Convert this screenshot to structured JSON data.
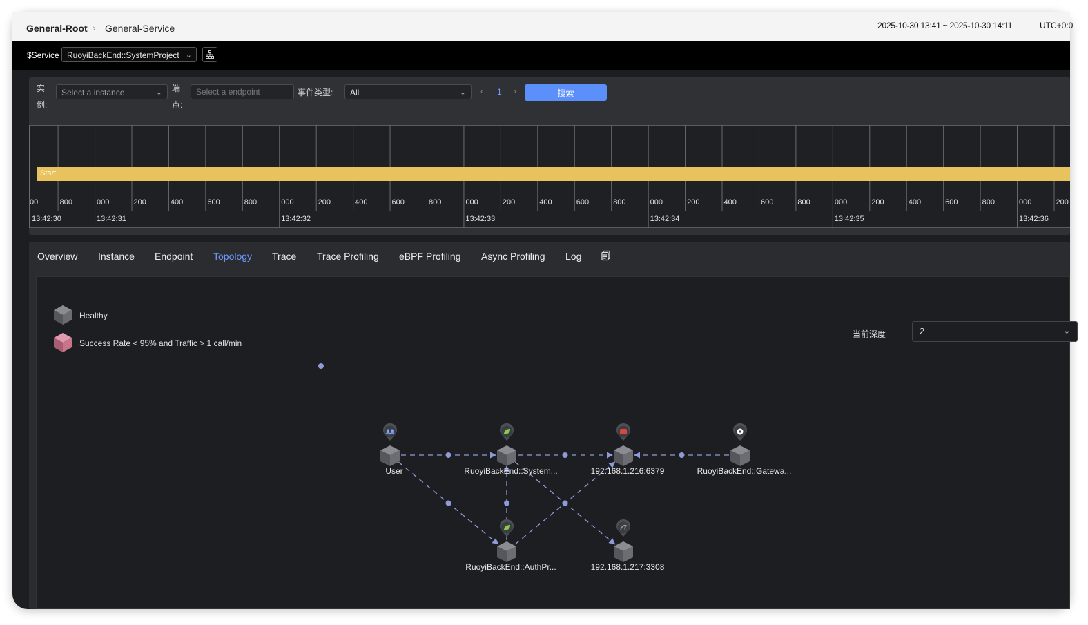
{
  "header": {
    "breadcrumb_root": "General-Root",
    "breadcrumb_sep": "›",
    "breadcrumb_service": "General-Service",
    "time_range": "2025-10-30 13:41 ~ 2025-10-30 14:11",
    "timezone": "UTC+0:0"
  },
  "service_bar": {
    "label": "$Service",
    "selected_service": "RuoyiBackEnd::SystemProject",
    "topology_icon": "hierarchy-icon"
  },
  "filters": {
    "instance_label_1": "实",
    "instance_label_2": "例:",
    "instance_placeholder": "Select a instance",
    "endpoint_label_1": "端",
    "endpoint_label_2": "点:",
    "endpoint_placeholder": "Select a endpoint",
    "event_type_label": "事件类型:",
    "event_type_value": "All",
    "page_prev": "‹",
    "page_number": "1",
    "page_next": "›",
    "search_label": "搜索"
  },
  "timeline": {
    "bar_label": "Start",
    "bar_color": "#e8c25d",
    "tick_labels": [
      "00",
      "800",
      "000",
      "200",
      "400",
      "600",
      "800",
      "000",
      "200",
      "400",
      "600",
      "800",
      "000",
      "200",
      "400",
      "600",
      "800",
      "000",
      "200",
      "400",
      "600",
      "800",
      "000",
      "200",
      "400",
      "600",
      "800",
      "000",
      "200"
    ],
    "timestamps": [
      "13:42:30",
      "13:42:31",
      "13:42:32",
      "13:42:33",
      "13:42:34",
      "13:42:35",
      "13:42:36"
    ]
  },
  "tabs": [
    "Overview",
    "Instance",
    "Endpoint",
    "Topology",
    "Trace",
    "Trace Profiling",
    "eBPF Profiling",
    "Async Profiling",
    "Log"
  ],
  "active_tab": "Topology",
  "tab_extra_icon": "clipboard-icon",
  "legend": {
    "healthy": "Healthy",
    "unhealthy": "Success Rate < 95% and Traffic > 1 call/min",
    "healthy_color": "#6b6d73",
    "unhealthy_color": "#c8758c"
  },
  "depth": {
    "label": "当前深度",
    "value": "2"
  },
  "topology": {
    "nodes": [
      {
        "id": "user",
        "label": "User",
        "icon": "users-icon"
      },
      {
        "id": "system",
        "label": "RuoyiBackEnd::System...",
        "icon": "leaf-icon"
      },
      {
        "id": "redis",
        "label": "192.168.1.216:6379",
        "icon": "redis-icon"
      },
      {
        "id": "gateway",
        "label": "RuoyiBackEnd::Gatewa...",
        "icon": "gateway-icon"
      },
      {
        "id": "auth",
        "label": "RuoyiBackEnd::AuthPr...",
        "icon": "leaf-icon"
      },
      {
        "id": "mysql",
        "label": "192.168.1.217:3308",
        "icon": "mysql-icon"
      }
    ],
    "edges": [
      {
        "from": "user",
        "to": "system"
      },
      {
        "from": "user",
        "to": "auth"
      },
      {
        "from": "system",
        "to": "redis"
      },
      {
        "from": "gateway",
        "to": "redis"
      },
      {
        "from": "auth",
        "to": "system"
      },
      {
        "from": "auth",
        "to": "redis"
      },
      {
        "from": "system",
        "to": "mysql"
      }
    ],
    "edge_color": "#8f9ad8"
  }
}
